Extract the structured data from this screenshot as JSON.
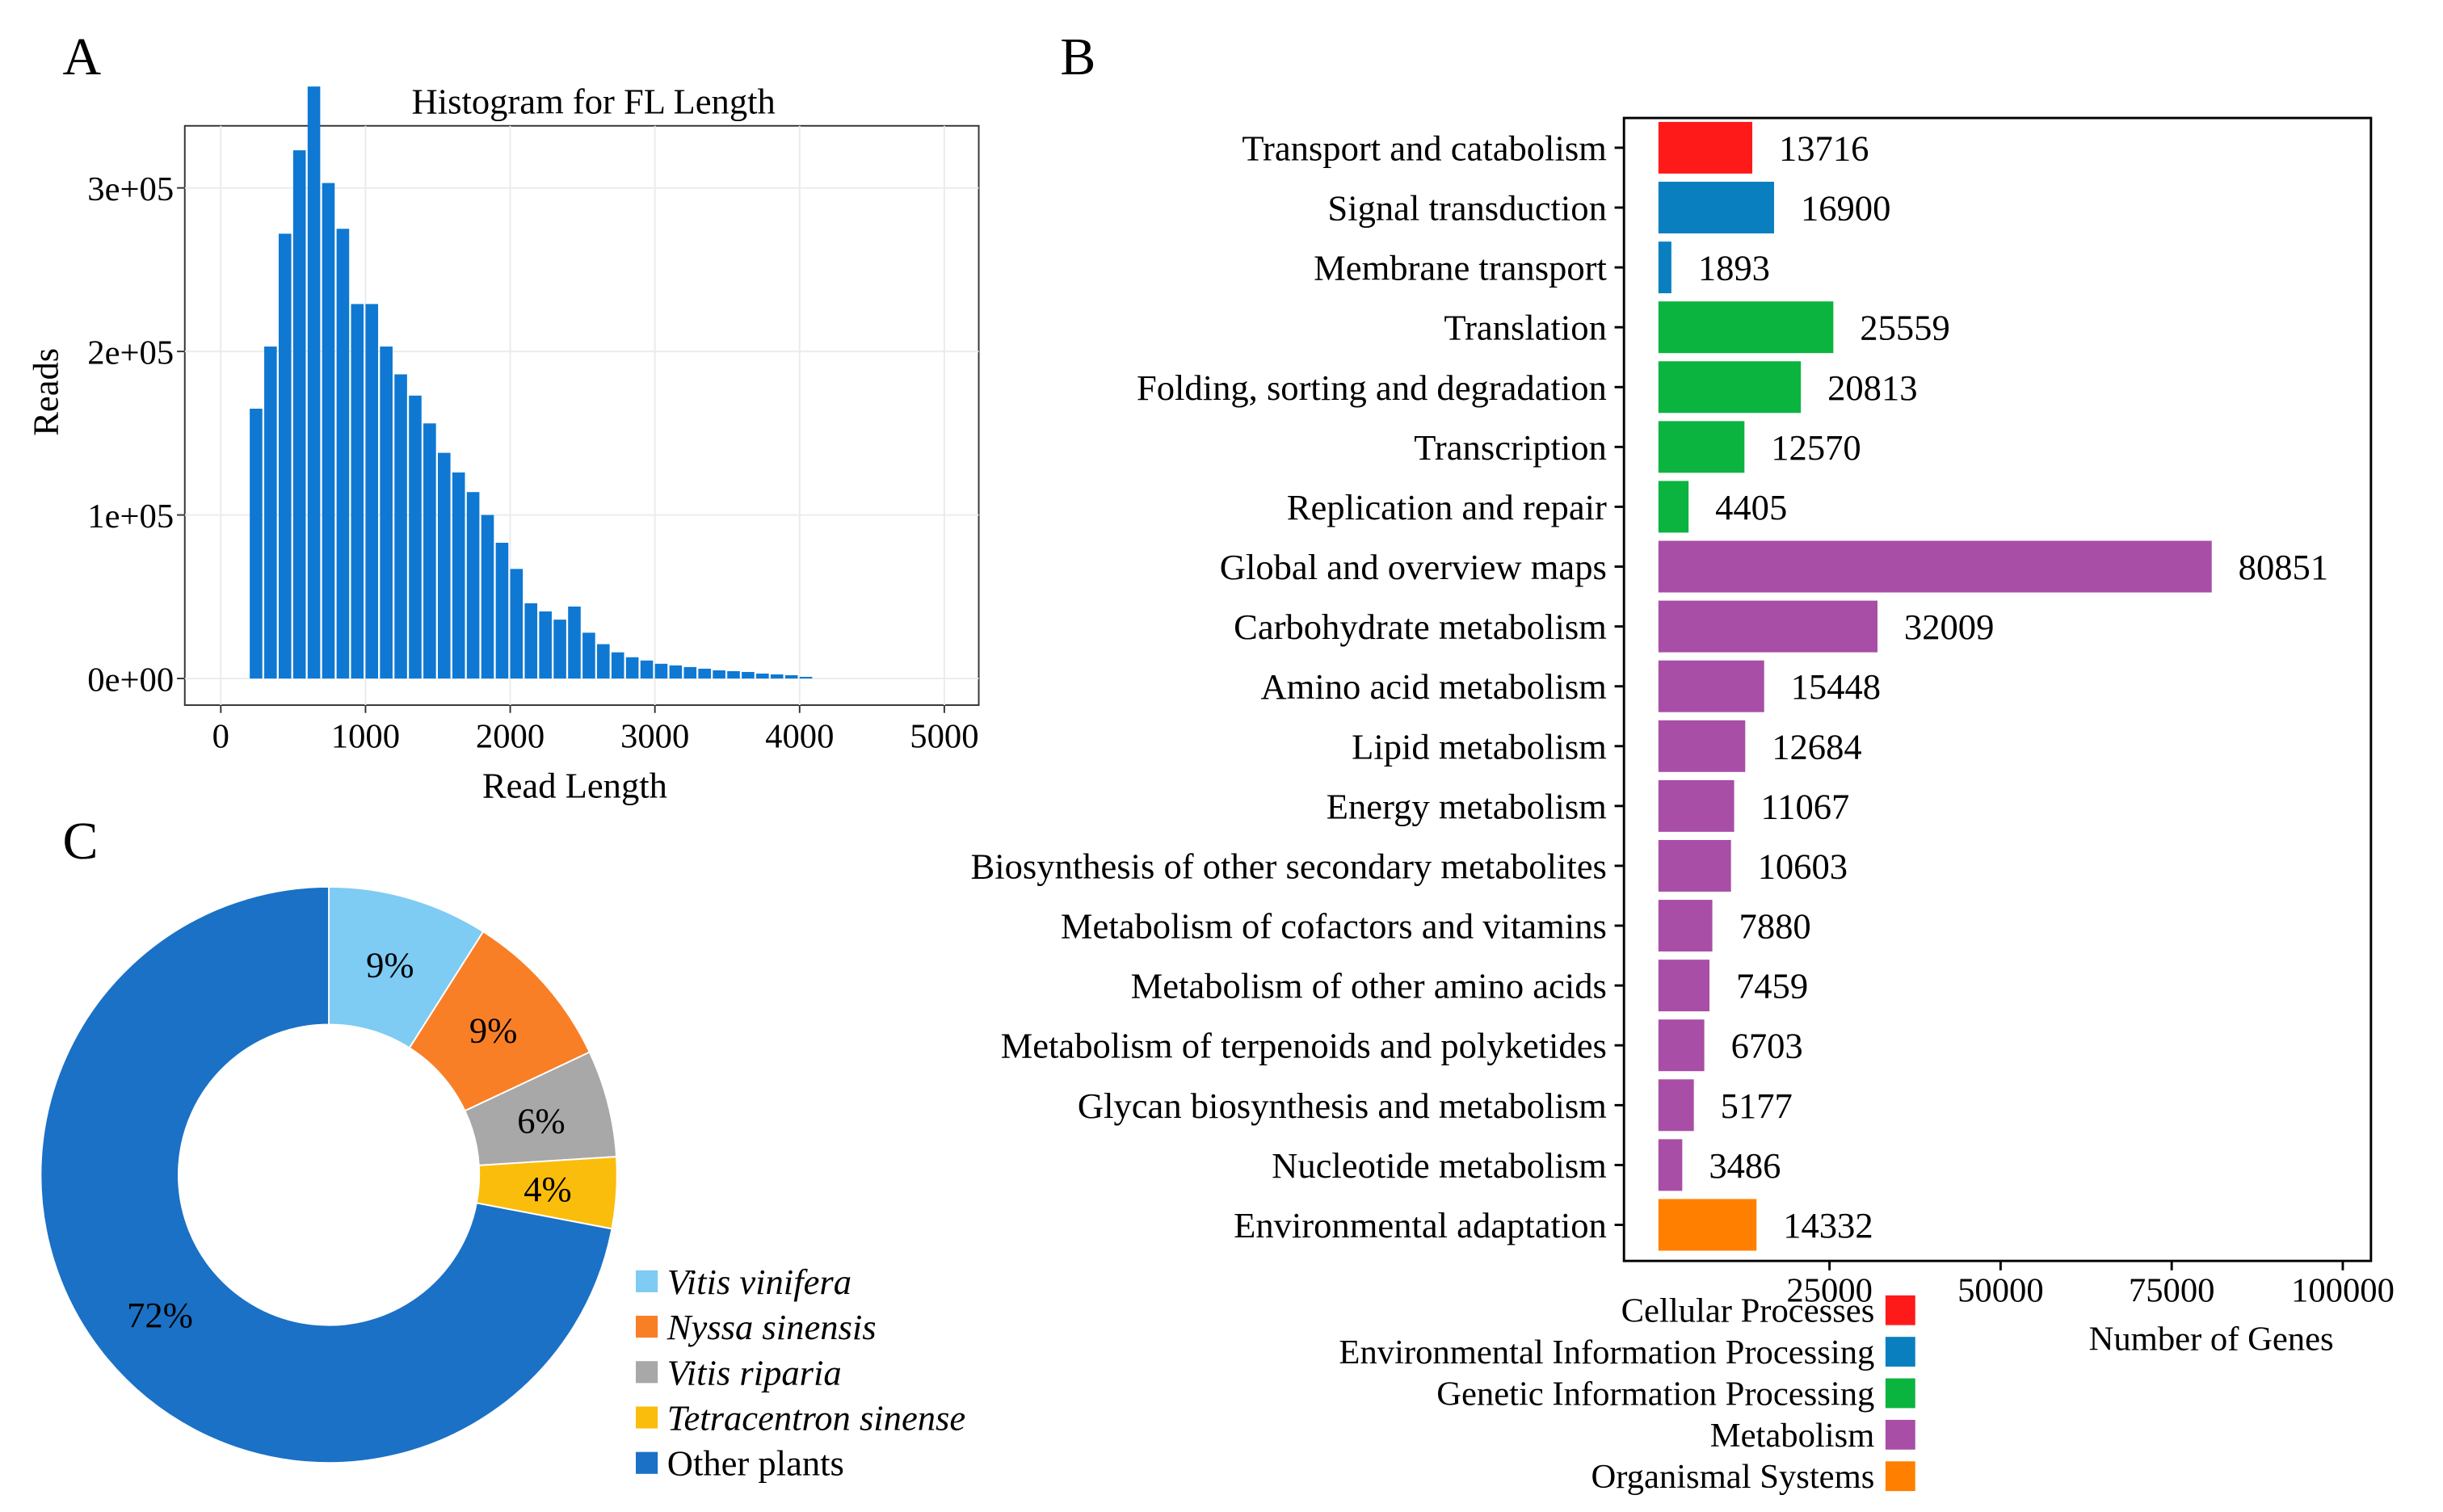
{
  "panel_labels": {
    "a": "A",
    "b": "B",
    "c": "C"
  },
  "chart_data": [
    {
      "panel": "A",
      "type": "bar",
      "title": "Histogram for FL Length",
      "xlabel": "Read Length",
      "ylabel": "Reads",
      "xlim": [
        0,
        5000
      ],
      "ylim": [
        0,
        360000
      ],
      "xticks": [
        0,
        1000,
        2000,
        3000,
        4000,
        5000
      ],
      "xtick_labels": [
        "0",
        "1000",
        "2000",
        "3000",
        "4000",
        "5000"
      ],
      "yticks": [
        0,
        100000,
        200000,
        300000
      ],
      "ytick_labels": [
        "0e+00",
        "1e+05",
        "2e+05",
        "3e+05"
      ],
      "bin_width": 100,
      "bin_starts": [
        200,
        300,
        400,
        500,
        600,
        700,
        800,
        900,
        1000,
        1100,
        1200,
        1300,
        1400,
        1500,
        1600,
        1700,
        1800,
        1900,
        2000,
        2100,
        2200,
        2300,
        2400,
        2500,
        2600,
        2700,
        2800,
        2900,
        3000,
        3100,
        3200,
        3300,
        3400,
        3500,
        3600,
        3700,
        3800,
        3900,
        4000
      ],
      "values": [
        165000,
        203000,
        272000,
        323000,
        362000,
        303000,
        275000,
        229000,
        229000,
        203000,
        186000,
        173000,
        156000,
        138000,
        126000,
        114000,
        100000,
        83000,
        67000,
        46000,
        41000,
        36000,
        44000,
        28000,
        21000,
        16000,
        13000,
        11000,
        9000,
        8000,
        7000,
        6000,
        5000,
        4500,
        4000,
        3000,
        2500,
        2000,
        1000
      ],
      "grid": true
    },
    {
      "panel": "B",
      "type": "bar",
      "orientation": "horizontal",
      "xlabel": "Number of Genes",
      "xlim": [
        0,
        100000
      ],
      "xticks": [
        25000,
        50000,
        75000,
        100000
      ],
      "xtick_labels": [
        "25000",
        "50000",
        "75000",
        "100000"
      ],
      "categories": [
        "Transport and catabolism",
        "Signal transduction",
        "Membrane transport",
        "Translation",
        "Folding, sorting and degradation",
        "Transcription",
        "Replication and repair",
        "Global and overview maps",
        "Carbohydrate metabolism",
        "Amino acid metabolism",
        "Lipid metabolism",
        "Energy metabolism",
        "Biosynthesis of other secondary metabolites",
        "Metabolism of cofactors and vitamins",
        "Metabolism of other amino acids",
        "Metabolism of terpenoids and polyketides",
        "Glycan biosynthesis and metabolism",
        "Nucleotide metabolism",
        "Environmental adaptation"
      ],
      "values": [
        13716,
        16900,
        1893,
        25559,
        20813,
        12570,
        4405,
        80851,
        32009,
        15448,
        12684,
        11067,
        10603,
        7880,
        7459,
        6703,
        5177,
        3486,
        14332
      ],
      "value_labels": [
        "13716",
        "16900",
        "1893",
        "25559",
        "20813",
        "12570",
        "4405",
        "80851",
        "32009",
        "15448",
        "12684",
        "11067",
        "10603",
        "7880",
        "7459",
        "6703",
        "5177",
        "3486",
        "14332"
      ],
      "group_index": [
        0,
        1,
        1,
        2,
        2,
        2,
        2,
        3,
        3,
        3,
        3,
        3,
        3,
        3,
        3,
        3,
        3,
        3,
        4
      ],
      "groups": [
        {
          "name": "Cellular Processes",
          "color": "#ff1a1a"
        },
        {
          "name": "Environmental Information Processing",
          "color": "#0a7fc0"
        },
        {
          "name": "Genetic Information Processing",
          "color": "#0bb43f"
        },
        {
          "name": "Metabolism",
          "color": "#a84ea6"
        },
        {
          "name": "Organismal Systems",
          "color": "#ff8000"
        }
      ],
      "legend_position": "bottom-left"
    },
    {
      "panel": "C",
      "type": "pie",
      "donut": true,
      "categories": [
        "Vitis vinifera",
        "Nyssa sinensis",
        "Vitis riparia",
        "Tetracentron sinense",
        "Other plants"
      ],
      "italic": [
        true,
        true,
        true,
        true,
        false
      ],
      "values": [
        9,
        9,
        6,
        4,
        72
      ],
      "value_labels": [
        "9%",
        "9%",
        "6%",
        "4%",
        "72%"
      ],
      "colors": [
        "#7ecbf4",
        "#f97f27",
        "#a8a8a8",
        "#fbbd0b",
        "#1a71c6"
      ],
      "legend_position": "bottom-right"
    }
  ]
}
